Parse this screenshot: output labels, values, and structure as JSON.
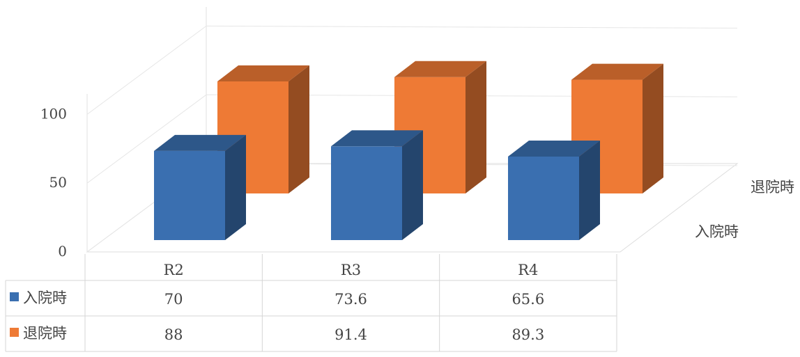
{
  "chart_data": {
    "type": "bar",
    "subtype": "3d-clustered-with-data-table",
    "categories": [
      "R2",
      "R3",
      "R4"
    ],
    "series": [
      {
        "name": "入院時",
        "values": [
          70,
          73.6,
          65.6
        ],
        "color": "#3a6fb0"
      },
      {
        "name": "退院時",
        "values": [
          88,
          91.4,
          89.3
        ],
        "color": "#ee7a35"
      }
    ],
    "y_ticks": [
      0,
      50,
      100
    ],
    "ylim": [
      0,
      100
    ],
    "grid": true,
    "legend": "data-table"
  }
}
